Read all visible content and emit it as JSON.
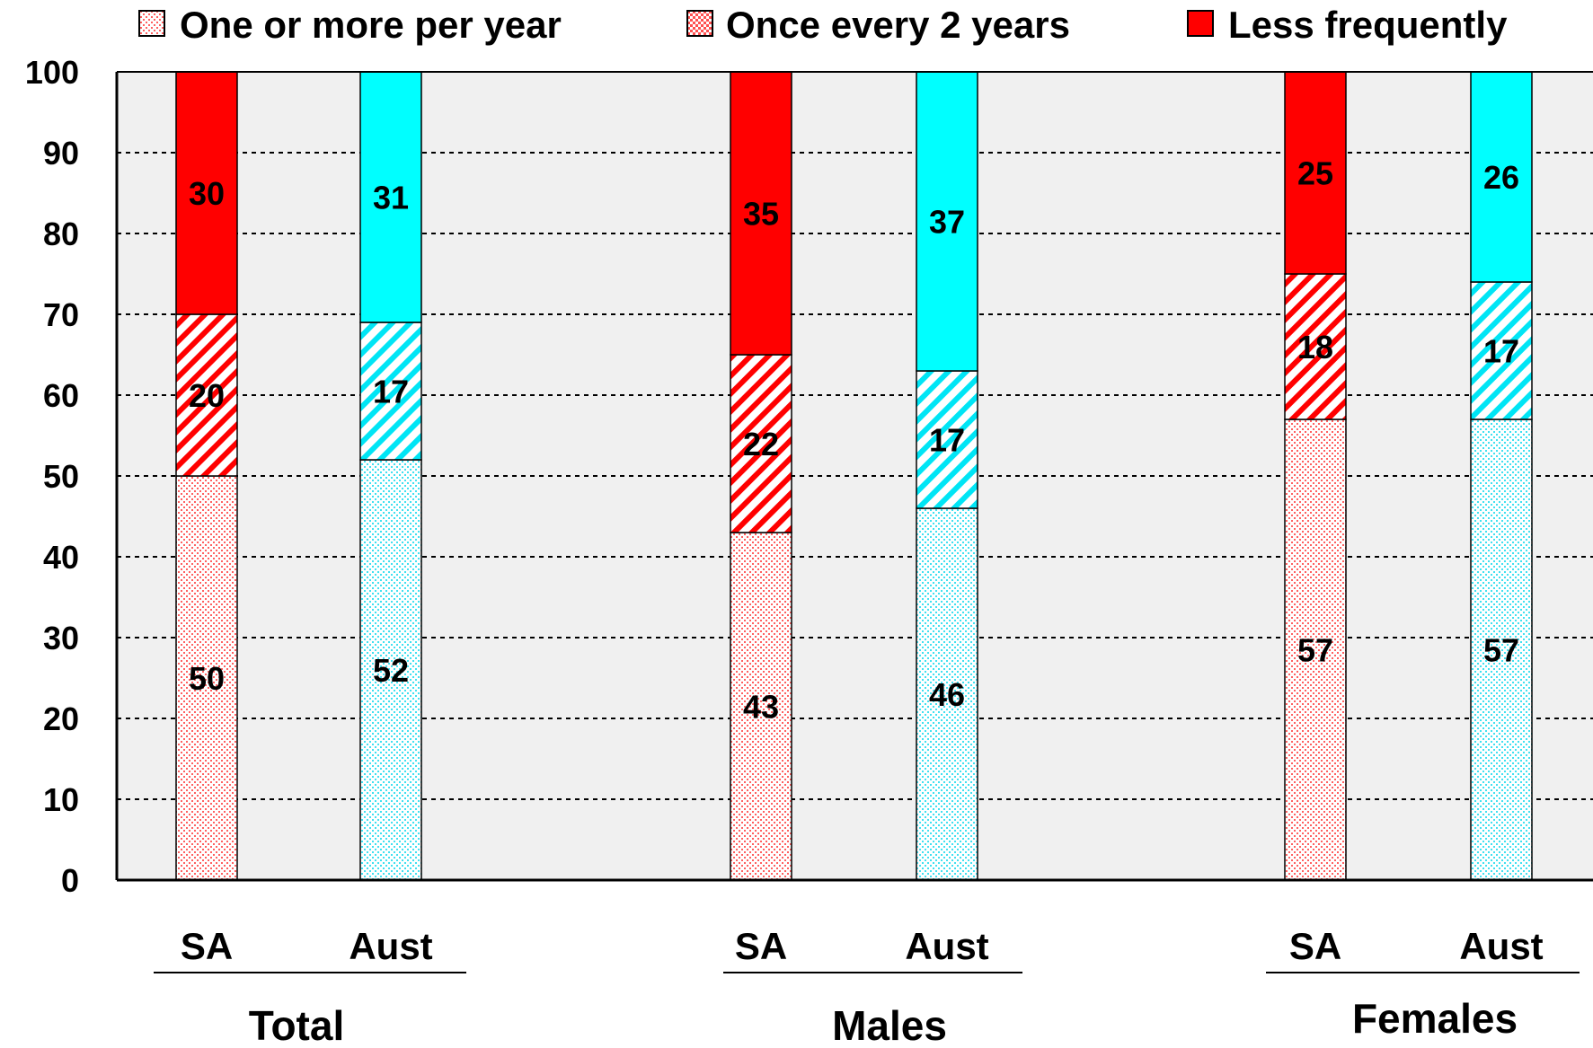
{
  "chart_data": {
    "type": "bar",
    "stacked": true,
    "title": "",
    "xlabel": "",
    "ylabel": "",
    "ylim": [
      0,
      100
    ],
    "yticks": [
      0,
      10,
      20,
      30,
      40,
      50,
      60,
      70,
      80,
      90,
      100
    ],
    "grid": true,
    "legend_position": "top",
    "groups": [
      {
        "label": "Total",
        "categories": [
          "SA",
          "Aust"
        ]
      },
      {
        "label": "Males",
        "categories": [
          "SA",
          "Aust"
        ]
      },
      {
        "label": "Females",
        "categories": [
          "SA",
          "Aust"
        ]
      }
    ],
    "categories": [
      "SA",
      "Aust",
      "SA",
      "Aust",
      "SA",
      "Aust"
    ],
    "series": [
      {
        "name": "One or more per year",
        "values": [
          50,
          52,
          43,
          46,
          57,
          57
        ]
      },
      {
        "name": "Once every 2 years",
        "values": [
          20,
          17,
          22,
          17,
          18,
          17
        ]
      },
      {
        "name": "Less frequently",
        "values": [
          30,
          31,
          35,
          37,
          25,
          26
        ]
      }
    ],
    "colors": {
      "SA": "#ff0000",
      "Aust": "#00ffff",
      "plot_background": "#f0f0f0"
    }
  }
}
